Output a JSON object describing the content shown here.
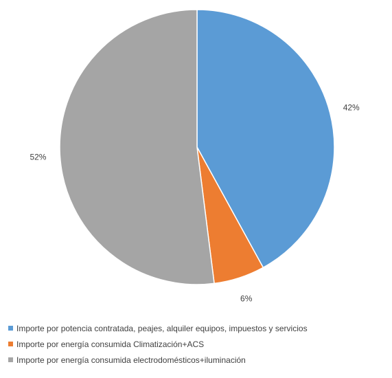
{
  "chart_data": {
    "type": "pie",
    "title": "",
    "categories": [
      "Importe por potencia contratada, peajes, alquiler equipos, impuestos y servicios",
      "Importe por energía consumida Climatización+ACS",
      "Importe por energía consumida electrodomésticos+iluminación"
    ],
    "values": [
      42,
      6,
      52
    ],
    "value_labels": [
      "42%",
      "6%",
      "52%"
    ],
    "colors": [
      "#5B9BD5",
      "#ED7D31",
      "#A5A5A5"
    ],
    "legend_position": "bottom",
    "start_angle": "top, clockwise"
  }
}
